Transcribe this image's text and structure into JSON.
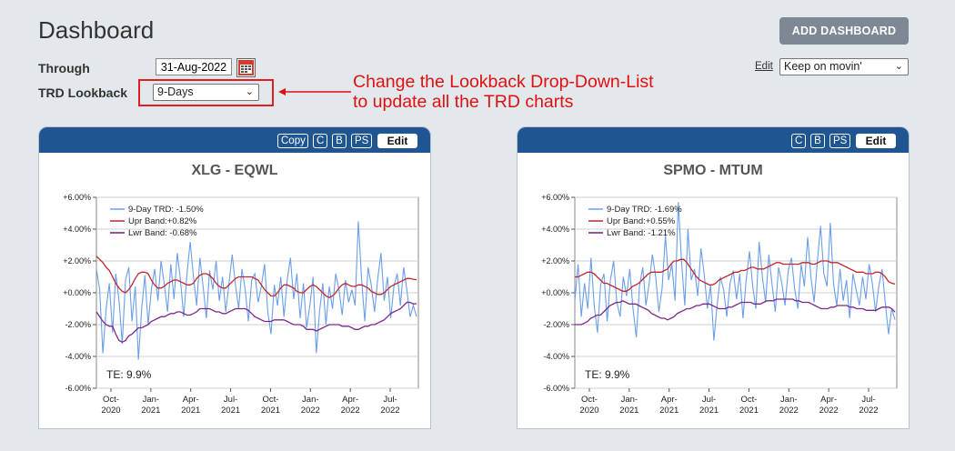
{
  "page": {
    "title": "Dashboard",
    "add_dashboard_label": "ADD DASHBOARD",
    "through_label": "Through",
    "through_date": "31-Aug-2022",
    "lookback_label": "TRD Lookback",
    "lookback_value": "9-Days",
    "edit_link": "Edit",
    "dashboard_select": "Keep on movin'",
    "annotation_line1": "Change the Lookback Drop-Down-List",
    "annotation_line2": "to update all the TRD charts",
    "colors": {
      "header": "#1f5590",
      "annotation": "#e01010",
      "trd": "#6a9ee8",
      "upper": "#c0272d",
      "lower": "#7b2a8c"
    }
  },
  "cards": [
    {
      "buttons": [
        "Copy",
        "C",
        "B",
        "PS"
      ],
      "edit_label": "Edit",
      "te_label": "TE:  9.9%"
    },
    {
      "buttons": [
        "C",
        "B",
        "PS"
      ],
      "edit_label": "Edit",
      "te_label": "TE:  9.9%"
    }
  ],
  "chart_data": [
    {
      "type": "line",
      "title": "XLG - EQWL",
      "ylim": [
        -6,
        6
      ],
      "yticks": [
        "+6.00%",
        "+4.00%",
        "+2.00%",
        "+0.00%",
        "-2.00%",
        "-4.00%",
        "-6.00%"
      ],
      "xticks": [
        [
          "Oct-",
          "2020"
        ],
        [
          "Jan-",
          "2021"
        ],
        [
          "Apr-",
          "2021"
        ],
        [
          "Jul-",
          "2021"
        ],
        [
          "Oct-",
          "2021"
        ],
        [
          "Jan-",
          "2022"
        ],
        [
          "Apr-",
          "2022"
        ],
        [
          "Jul-",
          "2022"
        ]
      ],
      "grid": true,
      "legend_placement": "top-left",
      "series": [
        {
          "name": "9-Day TRD: -1.50%",
          "values": [
            1.5,
            0.2,
            -3.8,
            -1.0,
            0.6,
            -2.5,
            1.2,
            -0.5,
            -3.2,
            0.8,
            1.6,
            -1.8,
            0.4,
            -4.2,
            -1.0,
            1.1,
            -2.0,
            0.2,
            1.5,
            -0.5,
            2.0,
            0.5,
            -1.2,
            1.8,
            -0.4,
            2.5,
            0.8,
            -1.5,
            1.2,
            3.2,
            1.0,
            -0.8,
            2.2,
            0.4,
            -1.6,
            1.4,
            0.2,
            2.0,
            -0.5,
            1.0,
            -1.2,
            0.6,
            2.4,
            0.5,
            -1.0,
            1.5,
            0.2,
            -1.8,
            0.8,
            1.2,
            -0.6,
            0.4,
            1.8,
            -1.2,
            -2.6,
            0.5,
            -0.8,
            1.0,
            -1.5,
            0.8,
            2.2,
            -0.4,
            1.2,
            -1.6,
            0.6,
            -2.2,
            -0.8,
            1.0,
            -3.8,
            -1.2,
            0.6,
            -2.0,
            0.4,
            -1.0,
            1.2,
            0.2,
            -1.4,
            0.8,
            -0.6,
            0.2,
            -0.8,
            4.5,
            0.8,
            -1.8,
            1.6,
            0.5,
            -1.2,
            0.9,
            2.5,
            -0.5,
            1.0,
            -1.6,
            0.4,
            1.2,
            -0.8,
            1.6,
            0.2,
            -1.5,
            -0.8,
            -1.5
          ]
        },
        {
          "name": "Upr Band:+0.82%",
          "values": [
            2.3,
            2.1,
            1.9,
            1.6,
            1.4,
            1.0,
            0.6,
            0.3,
            0.1,
            0.0,
            0.2,
            0.5,
            0.9,
            1.2,
            1.3,
            1.3,
            1.2,
            0.8,
            0.5,
            0.3,
            0.3,
            0.4,
            0.6,
            0.7,
            0.8,
            0.8,
            0.7,
            0.6,
            0.5,
            0.5,
            0.6,
            0.9,
            1.1,
            1.2,
            1.2,
            1.1,
            0.9,
            0.6,
            0.4,
            0.3,
            0.3,
            0.5,
            0.7,
            0.9,
            1.0,
            1.0,
            1.0,
            1.0,
            1.0,
            0.9,
            0.8,
            0.5,
            0.2,
            0.0,
            -0.2,
            -0.2,
            0.0,
            0.3,
            0.5,
            0.5,
            0.4,
            0.3,
            0.1,
            0.0,
            0.0,
            0.2,
            0.4,
            0.5,
            0.4,
            0.2,
            0.0,
            -0.2,
            -0.3,
            -0.2,
            0.0,
            0.3,
            0.5,
            0.6,
            0.5,
            0.4,
            0.4,
            0.5,
            0.5,
            0.4,
            0.3,
            0.1,
            0.0,
            -0.1,
            -0.1,
            0.0,
            0.2,
            0.4,
            0.5,
            0.6,
            0.7,
            0.8,
            0.9,
            0.9,
            0.85,
            0.82
          ]
        },
        {
          "name": "Lwr Band: -0.68%",
          "values": [
            -1.2,
            -1.5,
            -1.8,
            -2.0,
            -2.1,
            -2.1,
            -2.6,
            -3.0,
            -3.1,
            -3.0,
            -2.7,
            -2.6,
            -2.4,
            -2.2,
            -2.2,
            -2.1,
            -2.0,
            -1.8,
            -1.7,
            -1.6,
            -1.5,
            -1.5,
            -1.4,
            -1.3,
            -1.3,
            -1.2,
            -1.2,
            -1.3,
            -1.4,
            -1.4,
            -1.3,
            -1.2,
            -1.0,
            -1.0,
            -1.0,
            -1.0,
            -1.1,
            -1.2,
            -1.2,
            -1.3,
            -1.3,
            -1.2,
            -1.1,
            -1.0,
            -1.0,
            -1.0,
            -1.0,
            -1.1,
            -1.3,
            -1.5,
            -1.6,
            -1.7,
            -1.8,
            -1.8,
            -1.8,
            -1.7,
            -1.7,
            -1.7,
            -1.7,
            -1.8,
            -1.9,
            -2.0,
            -2.0,
            -2.0,
            -2.1,
            -2.3,
            -2.3,
            -2.3,
            -2.4,
            -2.3,
            -2.2,
            -2.1,
            -2.0,
            -2.0,
            -2.0,
            -2.0,
            -2.1,
            -2.1,
            -2.1,
            -2.2,
            -2.3,
            -2.3,
            -2.2,
            -2.1,
            -2.1,
            -2.0,
            -2.0,
            -1.9,
            -1.8,
            -1.7,
            -1.5,
            -1.3,
            -1.2,
            -1.1,
            -1.0,
            -0.8,
            -0.6,
            -0.6,
            -0.7,
            -0.68
          ]
        }
      ]
    },
    {
      "type": "line",
      "title": "SPMO - MTUM",
      "ylim": [
        -6,
        6
      ],
      "yticks": [
        "+6.00%",
        "+4.00%",
        "+2.00%",
        "+0.00%",
        "-2.00%",
        "-4.00%",
        "-6.00%"
      ],
      "xticks": [
        [
          "Oct-",
          "2020"
        ],
        [
          "Jan-",
          "2021"
        ],
        [
          "Apr-",
          "2021"
        ],
        [
          "Jul-",
          "2021"
        ],
        [
          "Oct-",
          "2021"
        ],
        [
          "Jan-",
          "2022"
        ],
        [
          "Apr-",
          "2022"
        ],
        [
          "Jul-",
          "2022"
        ]
      ],
      "grid": true,
      "legend_placement": "top-left",
      "series": [
        {
          "name": "9-Day TRD: -1.69%",
          "values": [
            -0.5,
            1.8,
            -1.5,
            0.6,
            -1.0,
            2.2,
            -0.8,
            -2.5,
            0.5,
            1.2,
            -1.8,
            0.8,
            2.0,
            -0.6,
            -1.5,
            1.0,
            -0.2,
            1.5,
            -1.0,
            -2.8,
            0.4,
            1.6,
            -0.8,
            0.6,
            2.4,
            1.0,
            -1.2,
            0.3,
            3.6,
            0.8,
            1.8,
            -0.5,
            5.7,
            2.0,
            -0.8,
            4.0,
            0.8,
            1.5,
            -0.2,
            2.8,
            1.2,
            -1.0,
            0.5,
            -3.0,
            -0.8,
            1.0,
            0.2,
            -1.5,
            0.6,
            1.4,
            -0.4,
            1.2,
            -1.6,
            0.8,
            2.6,
            0.4,
            -1.0,
            3.2,
            1.0,
            -0.6,
            2.4,
            0.5,
            -1.2,
            1.6,
            0.6,
            -0.8,
            1.4,
            2.2,
            0.2,
            -1.0,
            1.8,
            0.4,
            3.5,
            1.0,
            -0.6,
            2.0,
            4.2,
            1.2,
            0.4,
            4.4,
            0.6,
            -0.8,
            1.5,
            -0.5,
            0.8,
            -1.6,
            1.2,
            0.2,
            -0.8,
            1.0,
            -0.4,
            1.8,
            0.6,
            -1.2,
            0.4,
            1.5,
            -0.6,
            -2.6,
            -1.0,
            -1.69
          ]
        },
        {
          "name": "Upr Band:+0.55%",
          "values": [
            1.0,
            1.0,
            1.1,
            1.2,
            1.3,
            1.3,
            1.2,
            1.0,
            0.8,
            0.6,
            0.6,
            0.5,
            0.4,
            0.3,
            0.2,
            0.1,
            0.1,
            0.2,
            0.4,
            0.5,
            0.6,
            0.8,
            1.0,
            1.2,
            1.3,
            1.3,
            1.3,
            1.3,
            1.4,
            1.5,
            1.8,
            2.0,
            2.0,
            2.1,
            2.1,
            1.9,
            1.6,
            1.3,
            1.0,
            0.8,
            0.7,
            0.6,
            0.5,
            0.5,
            0.6,
            0.8,
            0.9,
            1.0,
            1.1,
            1.2,
            1.3,
            1.3,
            1.4,
            1.4,
            1.5,
            1.6,
            1.6,
            1.5,
            1.5,
            1.5,
            1.6,
            1.7,
            1.8,
            1.9,
            1.9,
            1.8,
            1.8,
            1.8,
            1.8,
            1.8,
            1.8,
            1.9,
            1.9,
            1.9,
            1.8,
            1.8,
            1.9,
            2.0,
            2.0,
            2.0,
            1.9,
            1.9,
            1.9,
            1.8,
            1.7,
            1.6,
            1.5,
            1.4,
            1.3,
            1.3,
            1.3,
            1.2,
            1.2,
            1.2,
            1.3,
            1.3,
            1.2,
            1.0,
            0.7,
            0.6,
            0.55
          ]
        },
        {
          "name": "Lwr Band: -1.21%",
          "values": [
            -2.0,
            -2.0,
            -2.0,
            -1.9,
            -1.8,
            -1.6,
            -1.5,
            -1.4,
            -1.4,
            -1.2,
            -1.0,
            -0.8,
            -0.7,
            -0.6,
            -0.6,
            -0.5,
            -0.6,
            -0.7,
            -0.7,
            -0.7,
            -0.8,
            -0.9,
            -1.0,
            -1.1,
            -1.3,
            -1.4,
            -1.5,
            -1.6,
            -1.6,
            -1.7,
            -1.6,
            -1.5,
            -1.3,
            -1.2,
            -1.1,
            -1.0,
            -1.0,
            -0.9,
            -0.8,
            -0.8,
            -0.7,
            -0.7,
            -0.7,
            -0.8,
            -0.9,
            -1.0,
            -1.0,
            -1.0,
            -0.9,
            -0.9,
            -0.8,
            -0.7,
            -0.6,
            -0.6,
            -0.6,
            -0.6,
            -0.7,
            -0.7,
            -0.7,
            -0.6,
            -0.5,
            -0.5,
            -0.5,
            -0.4,
            -0.4,
            -0.4,
            -0.4,
            -0.4,
            -0.4,
            -0.5,
            -0.5,
            -0.6,
            -0.6,
            -0.6,
            -0.7,
            -0.8,
            -0.9,
            -1.0,
            -1.0,
            -1.0,
            -0.9,
            -0.9,
            -0.8,
            -0.8,
            -0.8,
            -0.8,
            -0.9,
            -0.9,
            -1.0,
            -1.0,
            -1.0,
            -1.1,
            -1.1,
            -1.1,
            -1.1,
            -1.0,
            -0.9,
            -0.9,
            -0.9,
            -1.0,
            -1.21
          ]
        }
      ]
    }
  ]
}
